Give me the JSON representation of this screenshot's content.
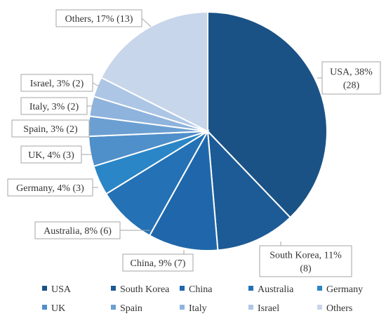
{
  "chart_data": {
    "type": "pie",
    "title": "",
    "categories": [
      "USA",
      "South Korea",
      "China",
      "Australia",
      "Germany",
      "UK",
      "Spain",
      "Italy",
      "Israel",
      "Others"
    ],
    "counts": [
      28,
      8,
      7,
      6,
      3,
      3,
      2,
      2,
      2,
      13
    ],
    "percent_labels": [
      "38%",
      "11%",
      "9%",
      "8%",
      "4%",
      "4%",
      "3%",
      "3%",
      "3%",
      "17%"
    ],
    "slice_labels": [
      [
        "USA, 38%",
        "(28)"
      ],
      [
        "South Korea, 11%",
        "(8)"
      ],
      [
        "China, 9% (7)"
      ],
      [
        "Australia, 8% (6)"
      ],
      [
        "Germany, 4% (3)"
      ],
      [
        "UK, 4% (3)"
      ],
      [
        "Spain, 3% (2)"
      ],
      [
        "Italy, 3% (2)"
      ],
      [
        "Israel, 3% (2)"
      ],
      [
        "Others, 17% (13)"
      ]
    ],
    "colors": [
      "#1a5286",
      "#1c5b95",
      "#1f67aa",
      "#2471b5",
      "#2a86c6",
      "#4f8fca",
      "#6b9fd2",
      "#8eb3dc",
      "#adc6e6",
      "#c7d6ea"
    ],
    "legend_position": "bottom"
  }
}
